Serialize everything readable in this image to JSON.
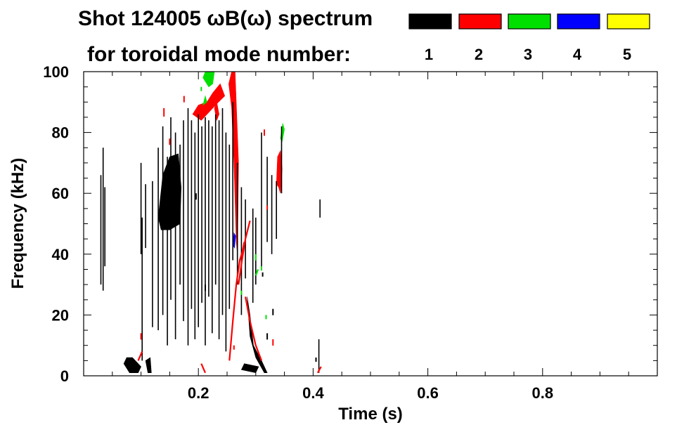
{
  "chart_data": {
    "type": "spectrogram",
    "title": "Shot 124005 ωB(ω) spectrum",
    "subtitle": "for toroidal mode number:",
    "xlabel": "Time (s)",
    "ylabel": "Frequency (kHz)",
    "xlim": [
      0.0,
      1.0
    ],
    "ylim": [
      0,
      100
    ],
    "xticks": [
      0.2,
      0.4,
      0.6,
      0.8
    ],
    "xtick_labels": [
      "0.2",
      "0.4",
      "0.6",
      "0.8"
    ],
    "xminor_step": 0.05,
    "yticks": [
      0,
      20,
      40,
      60,
      80,
      100
    ],
    "ytick_labels": [
      "0",
      "20",
      "40",
      "60",
      "80",
      "100"
    ],
    "yminor_step": 5,
    "legend": [
      {
        "mode": "1",
        "color": "#000000"
      },
      {
        "mode": "2",
        "color": "#ff0000"
      },
      {
        "mode": "3",
        "color": "#00e000"
      },
      {
        "mode": "4",
        "color": "#0000ff"
      },
      {
        "mode": "5",
        "color": "#ffff00"
      }
    ],
    "lines": [
      {
        "mode": 1,
        "t": 0.03,
        "f0": 30,
        "f1": 66
      },
      {
        "mode": 1,
        "t": 0.034,
        "f0": 28,
        "f1": 75
      },
      {
        "mode": 1,
        "t": 0.037,
        "f0": 36,
        "f1": 62
      },
      {
        "mode": 1,
        "t": 0.1,
        "f0": 40,
        "f1": 70
      },
      {
        "mode": 1,
        "t": 0.102,
        "f0": 5,
        "f1": 52
      },
      {
        "mode": 1,
        "t": 0.108,
        "f0": 42,
        "f1": 63
      },
      {
        "mode": 1,
        "t": 0.12,
        "f0": 16,
        "f1": 64
      },
      {
        "mode": 1,
        "t": 0.13,
        "f0": 15,
        "f1": 75
      },
      {
        "mode": 1,
        "t": 0.138,
        "f0": 20,
        "f1": 82
      },
      {
        "mode": 1,
        "t": 0.146,
        "f0": 10,
        "f1": 72
      },
      {
        "mode": 1,
        "t": 0.152,
        "f0": 25,
        "f1": 85
      },
      {
        "mode": 1,
        "t": 0.16,
        "f0": 12,
        "f1": 80
      },
      {
        "mode": 1,
        "t": 0.168,
        "f0": 30,
        "f1": 76
      },
      {
        "mode": 1,
        "t": 0.174,
        "f0": 18,
        "f1": 84
      },
      {
        "mode": 1,
        "t": 0.182,
        "f0": 10,
        "f1": 88
      },
      {
        "mode": 1,
        "t": 0.188,
        "f0": 22,
        "f1": 84
      },
      {
        "mode": 1,
        "t": 0.194,
        "f0": 12,
        "f1": 80
      },
      {
        "mode": 1,
        "t": 0.2,
        "f0": 16,
        "f1": 86
      },
      {
        "mode": 1,
        "t": 0.206,
        "f0": 24,
        "f1": 82
      },
      {
        "mode": 1,
        "t": 0.212,
        "f0": 10,
        "f1": 85
      },
      {
        "mode": 1,
        "t": 0.218,
        "f0": 26,
        "f1": 84
      },
      {
        "mode": 1,
        "t": 0.224,
        "f0": 14,
        "f1": 82
      },
      {
        "mode": 1,
        "t": 0.23,
        "f0": 30,
        "f1": 86
      },
      {
        "mode": 1,
        "t": 0.236,
        "f0": 12,
        "f1": 84
      },
      {
        "mode": 1,
        "t": 0.242,
        "f0": 20,
        "f1": 88
      },
      {
        "mode": 1,
        "t": 0.248,
        "f0": 8,
        "f1": 80
      },
      {
        "mode": 1,
        "t": 0.254,
        "f0": 22,
        "f1": 76
      },
      {
        "mode": 1,
        "t": 0.26,
        "f0": 38,
        "f1": 90
      },
      {
        "mode": 1,
        "t": 0.268,
        "f0": 30,
        "f1": 70
      },
      {
        "mode": 1,
        "t": 0.275,
        "f0": 20,
        "f1": 62
      },
      {
        "mode": 1,
        "t": 0.282,
        "f0": 32,
        "f1": 58
      },
      {
        "mode": 1,
        "t": 0.295,
        "f0": 24,
        "f1": 55
      },
      {
        "mode": 1,
        "t": 0.3,
        "f0": 30,
        "f1": 52
      },
      {
        "mode": 1,
        "t": 0.31,
        "f0": 36,
        "f1": 80
      },
      {
        "mode": 1,
        "t": 0.32,
        "f0": 44,
        "f1": 72
      },
      {
        "mode": 1,
        "t": 0.328,
        "f0": 40,
        "f1": 66
      },
      {
        "mode": 1,
        "t": 0.336,
        "f0": 45,
        "f1": 64
      },
      {
        "mode": 1,
        "t": 0.345,
        "f0": 60,
        "f1": 82
      },
      {
        "mode": 1,
        "t": 0.412,
        "f0": 52,
        "f1": 58
      },
      {
        "mode": 1,
        "t": 0.41,
        "f0": 1,
        "f1": 12
      }
    ],
    "patches": [
      {
        "mode": 1,
        "points": [
          [
            0.13,
            52
          ],
          [
            0.138,
            66
          ],
          [
            0.15,
            72
          ],
          [
            0.165,
            73
          ],
          [
            0.17,
            62
          ],
          [
            0.168,
            50
          ],
          [
            0.15,
            48
          ],
          [
            0.135,
            48
          ]
        ]
      },
      {
        "mode": 1,
        "points": [
          [
            0.285,
            26
          ],
          [
            0.29,
            13
          ],
          [
            0.3,
            6
          ],
          [
            0.315,
            1
          ],
          [
            0.32,
            1
          ],
          [
            0.31,
            5
          ],
          [
            0.296,
            10
          ],
          [
            0.29,
            20
          ]
        ]
      },
      {
        "mode": 1,
        "points": [
          [
            0.07,
            4
          ],
          [
            0.08,
            1
          ],
          [
            0.095,
            1
          ],
          [
            0.1,
            3
          ],
          [
            0.085,
            6
          ],
          [
            0.075,
            6
          ]
        ]
      },
      {
        "mode": 1,
        "points": [
          [
            0.108,
            5
          ],
          [
            0.112,
            1
          ],
          [
            0.118,
            1
          ],
          [
            0.116,
            6
          ]
        ]
      },
      {
        "mode": 1,
        "points": [
          [
            0.275,
            2
          ],
          [
            0.3,
            1
          ],
          [
            0.305,
            3
          ],
          [
            0.28,
            4
          ]
        ]
      },
      {
        "mode": 2,
        "points": [
          [
            0.19,
            86
          ],
          [
            0.2,
            89
          ],
          [
            0.215,
            90
          ],
          [
            0.225,
            93
          ],
          [
            0.238,
            96
          ],
          [
            0.246,
            92
          ],
          [
            0.235,
            90
          ],
          [
            0.22,
            87
          ],
          [
            0.205,
            84
          ]
        ]
      },
      {
        "mode": 2,
        "points": [
          [
            0.253,
            96
          ],
          [
            0.258,
            100
          ],
          [
            0.264,
            100
          ],
          [
            0.27,
            70
          ],
          [
            0.268,
            40
          ],
          [
            0.266,
            44
          ],
          [
            0.262,
            70
          ],
          [
            0.258,
            88
          ]
        ]
      },
      {
        "mode": 2,
        "points": [
          [
            0.336,
            63
          ],
          [
            0.338,
            72
          ],
          [
            0.343,
            74
          ],
          [
            0.346,
            68
          ],
          [
            0.343,
            60
          ],
          [
            0.34,
            62
          ]
        ]
      },
      {
        "mode": 2,
        "points": [
          [
            0.228,
            88
          ],
          [
            0.232,
            90
          ],
          [
            0.236,
            86
          ],
          [
            0.232,
            84
          ]
        ]
      },
      {
        "mode": 3,
        "points": [
          [
            0.208,
            98
          ],
          [
            0.212,
            100
          ],
          [
            0.228,
            100
          ],
          [
            0.225,
            96
          ],
          [
            0.218,
            95
          ]
        ]
      },
      {
        "mode": 3,
        "points": [
          [
            0.343,
            78
          ],
          [
            0.347,
            83
          ],
          [
            0.35,
            81
          ],
          [
            0.346,
            77
          ]
        ]
      },
      {
        "mode": 3,
        "points": [
          [
            0.208,
            89
          ],
          [
            0.212,
            92
          ],
          [
            0.215,
            90
          ]
        ]
      },
      {
        "mode": 4,
        "points": [
          [
            0.26,
            43
          ],
          [
            0.262,
            47
          ],
          [
            0.265,
            46
          ],
          [
            0.263,
            42
          ]
        ]
      }
    ],
    "traces": [
      {
        "mode": 2,
        "points": [
          [
            0.254,
            5
          ],
          [
            0.26,
            18
          ],
          [
            0.266,
            30
          ],
          [
            0.272,
            38
          ],
          [
            0.277,
            41
          ],
          [
            0.28,
            44
          ]
        ]
      },
      {
        "mode": 2,
        "points": [
          [
            0.27,
            30
          ],
          [
            0.276,
            38
          ],
          [
            0.282,
            45
          ],
          [
            0.29,
            51
          ]
        ]
      },
      {
        "mode": 2,
        "points": [
          [
            0.282,
            26
          ],
          [
            0.29,
            18
          ],
          [
            0.3,
            10
          ],
          [
            0.31,
            5
          ]
        ]
      },
      {
        "mode": 2,
        "points": [
          [
            0.205,
            4
          ],
          [
            0.212,
            1
          ]
        ]
      },
      {
        "mode": 2,
        "points": [
          [
            0.095,
            5
          ],
          [
            0.102,
            8
          ]
        ]
      },
      {
        "mode": 2,
        "points": [
          [
            0.408,
            1
          ],
          [
            0.414,
            3
          ]
        ]
      },
      {
        "mode": 3,
        "points": [
          [
            0.3,
            33
          ],
          [
            0.304,
            35
          ]
        ]
      }
    ],
    "specks": [
      {
        "mode": 2,
        "t": 0.14,
        "f": 88,
        "len": 4
      },
      {
        "mode": 2,
        "t": 0.15,
        "f": 78,
        "len": 3
      },
      {
        "mode": 2,
        "t": 0.175,
        "f": 92,
        "len": 3
      },
      {
        "mode": 2,
        "t": 0.262,
        "f": 10,
        "len": 2
      },
      {
        "mode": 2,
        "t": 0.315,
        "f": 81,
        "len": 3
      },
      {
        "mode": 2,
        "t": 0.32,
        "f": 56,
        "len": 2
      },
      {
        "mode": 2,
        "t": 0.33,
        "f": 12,
        "len": 3
      },
      {
        "mode": 2,
        "t": 0.1,
        "f": 14,
        "len": 3
      },
      {
        "mode": 3,
        "t": 0.205,
        "f": 95,
        "len": 2
      },
      {
        "mode": 3,
        "t": 0.3,
        "f": 40,
        "len": 3
      },
      {
        "mode": 3,
        "t": 0.31,
        "f": 36,
        "len": 2
      },
      {
        "mode": 3,
        "t": 0.275,
        "f": 28,
        "len": 2
      },
      {
        "mode": 3,
        "t": 0.318,
        "f": 20,
        "len": 2
      },
      {
        "mode": 1,
        "t": 0.196,
        "f": 60,
        "len": 3
      },
      {
        "mode": 1,
        "t": 0.212,
        "f": 30,
        "len": 3
      },
      {
        "mode": 1,
        "t": 0.32,
        "f": 14,
        "len": 3
      },
      {
        "mode": 1,
        "t": 0.33,
        "f": 22,
        "len": 3
      },
      {
        "mode": 1,
        "t": 0.312,
        "f": 34,
        "len": 2
      },
      {
        "mode": 1,
        "t": 0.405,
        "f": 6,
        "len": 2
      }
    ]
  }
}
